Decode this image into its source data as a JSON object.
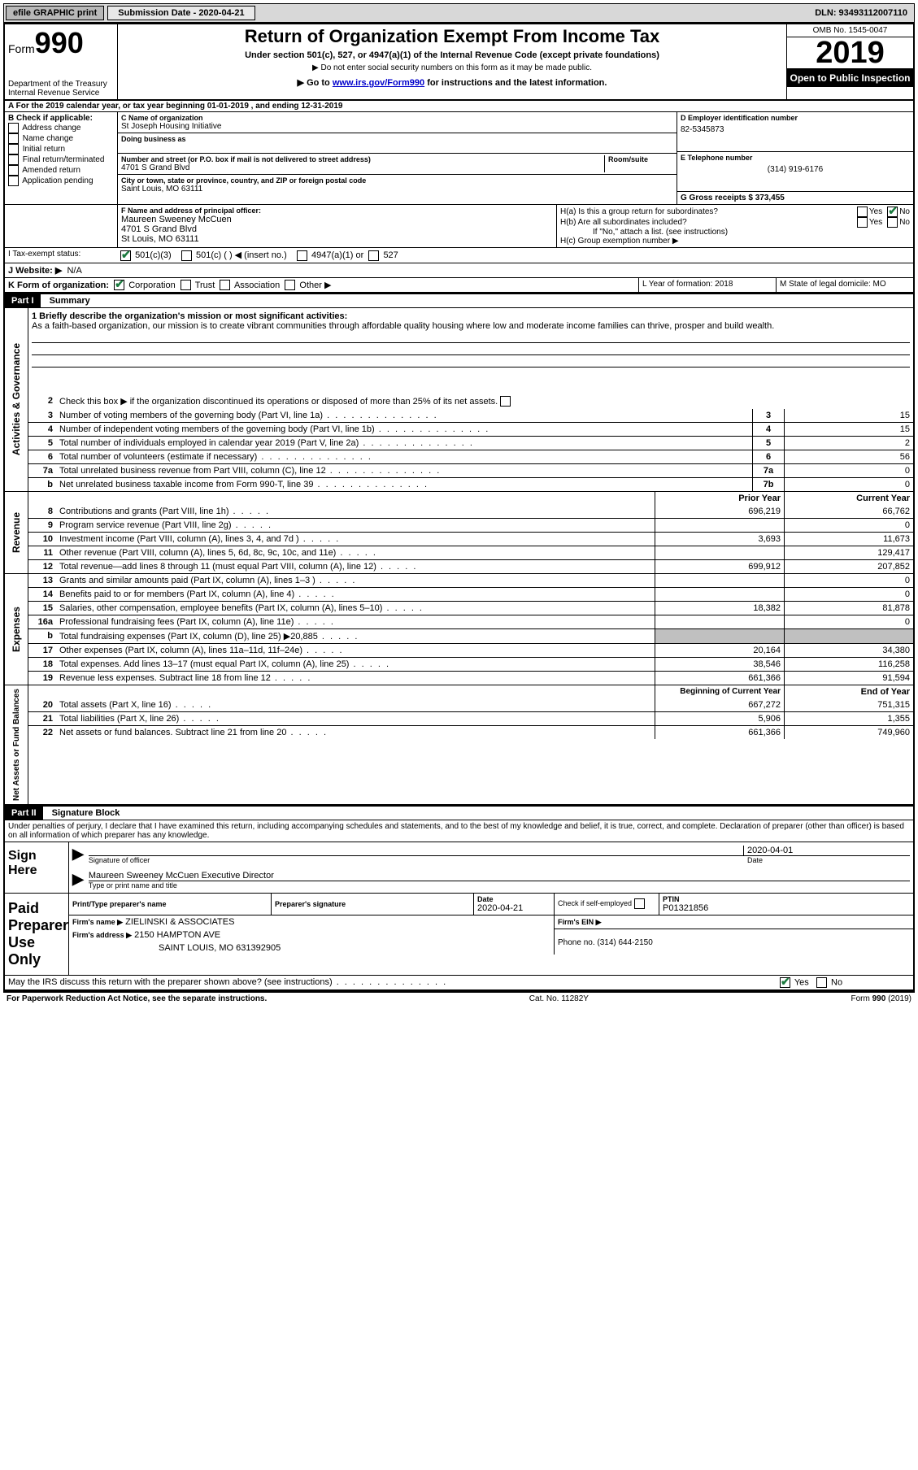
{
  "topbar": {
    "efile": "efile GRAPHIC print",
    "subdate_label": "Submission Date - 2020-04-21",
    "dln": "DLN: 93493112007110"
  },
  "header": {
    "form_prefix": "Form",
    "form_num": "990",
    "dept1": "Department of the Treasury",
    "dept2": "Internal Revenue Service",
    "title": "Return of Organization Exempt From Income Tax",
    "subtitle": "Under section 501(c), 527, or 4947(a)(1) of the Internal Revenue Code (except private foundations)",
    "note1": "▶ Do not enter social security numbers on this form as it may be made public.",
    "note2_pre": "▶ Go to ",
    "note2_link": "www.irs.gov/Form990",
    "note2_post": " for instructions and the latest information.",
    "omb": "OMB No. 1545-0047",
    "year": "2019",
    "open_public": "Open to Public Inspection"
  },
  "lineA": "A For the 2019 calendar year, or tax year beginning 01-01-2019   , and ending 12-31-2019",
  "colB": {
    "label": "B Check if applicable:",
    "items": [
      "Address change",
      "Name change",
      "Initial return",
      "Final return/terminated",
      "Amended return",
      "Application pending"
    ]
  },
  "colC": {
    "name_label": "C Name of organization",
    "name": "St Joseph Housing Initiative",
    "dba_label": "Doing business as",
    "addr_label": "Number and street (or P.O. box if mail is not delivered to street address)",
    "addr": "4701 S Grand Blvd",
    "room_label": "Room/suite",
    "city_label": "City or town, state or province, country, and ZIP or foreign postal code",
    "city": "Saint Louis, MO  63111"
  },
  "colD": {
    "ein_label": "D Employer identification number",
    "ein": "82-5345873"
  },
  "colE": {
    "phone_label": "E Telephone number",
    "phone": "(314) 919-6176"
  },
  "colG": {
    "gross_label": "G Gross receipts $ 373,455"
  },
  "colF": {
    "label": "F  Name and address of principal officer:",
    "name": "Maureen Sweeney McCuen",
    "addr": "4701 S Grand Blvd",
    "city": "St Louis, MO  63111"
  },
  "colH": {
    "a": "H(a)  Is this a group return for subordinates?",
    "b": "H(b)  Are all subordinates included?",
    "note": "If \"No,\" attach a list. (see instructions)",
    "c": "H(c)  Group exemption number ▶",
    "yes": "Yes",
    "no": "No"
  },
  "rowI": {
    "label": "I   Tax-exempt status:",
    "o1": "501(c)(3)",
    "o2": "501(c) (  ) ◀ (insert no.)",
    "o3": "4947(a)(1) or",
    "o4": "527"
  },
  "rowJ": {
    "label": "J   Website: ▶",
    "val": "N/A"
  },
  "rowK": {
    "label": "K Form of organization:",
    "o1": "Corporation",
    "o2": "Trust",
    "o3": "Association",
    "o4": "Other ▶"
  },
  "rowL": {
    "label": "L Year of formation: 2018"
  },
  "rowM": {
    "label": "M State of legal domicile: MO"
  },
  "part1": {
    "header": "Part I",
    "title": "Summary",
    "activities_label": "Activities & Governance",
    "revenue_label": "Revenue",
    "expenses_label": "Expenses",
    "netassets_label": "Net Assets or Fund Balances",
    "line1_label": "1   Briefly describe the organization's mission or most significant activities:",
    "mission": "As a faith-based organization, our mission is to create vibrant communities through affordable quality housing where low and moderate income families can thrive, prosper and build wealth.",
    "line2": "Check this box ▶       if the organization discontinued its operations or disposed of more than 25% of its net assets.",
    "rows_gov": [
      {
        "n": "3",
        "desc": "Number of voting members of the governing body (Part VI, line 1a)",
        "box": "3",
        "v": "15"
      },
      {
        "n": "4",
        "desc": "Number of independent voting members of the governing body (Part VI, line 1b)",
        "box": "4",
        "v": "15"
      },
      {
        "n": "5",
        "desc": "Total number of individuals employed in calendar year 2019 (Part V, line 2a)",
        "box": "5",
        "v": "2"
      },
      {
        "n": "6",
        "desc": "Total number of volunteers (estimate if necessary)",
        "box": "6",
        "v": "56"
      },
      {
        "n": "7a",
        "desc": "Total unrelated business revenue from Part VIII, column (C), line 12",
        "box": "7a",
        "v": "0"
      },
      {
        "n": "b",
        "desc": "Net unrelated business taxable income from Form 990-T, line 39",
        "box": "7b",
        "v": "0"
      }
    ],
    "col_prior": "Prior Year",
    "col_current": "Current Year",
    "revenue_rows": [
      {
        "n": "8",
        "desc": "Contributions and grants (Part VIII, line 1h)",
        "p": "696,219",
        "c": "66,762"
      },
      {
        "n": "9",
        "desc": "Program service revenue (Part VIII, line 2g)",
        "p": "",
        "c": "0"
      },
      {
        "n": "10",
        "desc": "Investment income (Part VIII, column (A), lines 3, 4, and 7d )",
        "p": "3,693",
        "c": "11,673"
      },
      {
        "n": "11",
        "desc": "Other revenue (Part VIII, column (A), lines 5, 6d, 8c, 9c, 10c, and 11e)",
        "p": "",
        "c": "129,417"
      },
      {
        "n": "12",
        "desc": "Total revenue—add lines 8 through 11 (must equal Part VIII, column (A), line 12)",
        "p": "699,912",
        "c": "207,852"
      }
    ],
    "expense_rows": [
      {
        "n": "13",
        "desc": "Grants and similar amounts paid (Part IX, column (A), lines 1–3 )",
        "p": "",
        "c": "0"
      },
      {
        "n": "14",
        "desc": "Benefits paid to or for members (Part IX, column (A), line 4)",
        "p": "",
        "c": "0"
      },
      {
        "n": "15",
        "desc": "Salaries, other compensation, employee benefits (Part IX, column (A), lines 5–10)",
        "p": "18,382",
        "c": "81,878"
      },
      {
        "n": "16a",
        "desc": "Professional fundraising fees (Part IX, column (A), line 11e)",
        "p": "",
        "c": "0"
      },
      {
        "n": "b",
        "desc": "Total fundraising expenses (Part IX, column (D), line 25) ▶20,885",
        "p": "SHADE",
        "c": "SHADE"
      },
      {
        "n": "17",
        "desc": "Other expenses (Part IX, column (A), lines 11a–11d, 11f–24e)",
        "p": "20,164",
        "c": "34,380"
      },
      {
        "n": "18",
        "desc": "Total expenses. Add lines 13–17 (must equal Part IX, column (A), line 25)",
        "p": "38,546",
        "c": "116,258"
      },
      {
        "n": "19",
        "desc": "Revenue less expenses. Subtract line 18 from line 12",
        "p": "661,366",
        "c": "91,594"
      }
    ],
    "col_begin": "Beginning of Current Year",
    "col_end": "End of Year",
    "netasset_rows": [
      {
        "n": "20",
        "desc": "Total assets (Part X, line 16)",
        "p": "667,272",
        "c": "751,315"
      },
      {
        "n": "21",
        "desc": "Total liabilities (Part X, line 26)",
        "p": "5,906",
        "c": "1,355"
      },
      {
        "n": "22",
        "desc": "Net assets or fund balances. Subtract line 21 from line 20",
        "p": "661,366",
        "c": "749,960"
      }
    ]
  },
  "part2": {
    "header": "Part II",
    "title": "Signature Block",
    "declaration": "Under penalties of perjury, I declare that I have examined this return, including accompanying schedules and statements, and to the best of my knowledge and belief, it is true, correct, and complete. Declaration of preparer (other than officer) is based on all information of which preparer has any knowledge."
  },
  "sign": {
    "here": "Sign Here",
    "sig_label": "Signature of officer",
    "date_label": "Date",
    "date": "2020-04-01",
    "name": "Maureen Sweeney McCuen  Executive Director",
    "name_label": "Type or print name and title"
  },
  "paid": {
    "label": "Paid Preparer Use Only",
    "print_label": "Print/Type preparer's name",
    "sig_label": "Preparer's signature",
    "date_label": "Date",
    "date": "2020-04-21",
    "check_label": "Check        if self-employed",
    "ptin_label": "PTIN",
    "ptin": "P01321856",
    "firm_label": "Firm's name    ▶",
    "firm": "ZIELINSKI & ASSOCIATES",
    "ein_label": "Firm's EIN ▶",
    "addr_label": "Firm's address ▶",
    "addr1": "2150 HAMPTON AVE",
    "addr2": "SAINT LOUIS, MO  631392905",
    "phone_label": "Phone no. (314) 644-2150"
  },
  "discuss": "May the IRS discuss this return with the preparer shown above? (see instructions)",
  "footer": {
    "left": "For Paperwork Reduction Act Notice, see the separate instructions.",
    "center": "Cat. No. 11282Y",
    "right": "Form 990 (2019)"
  }
}
